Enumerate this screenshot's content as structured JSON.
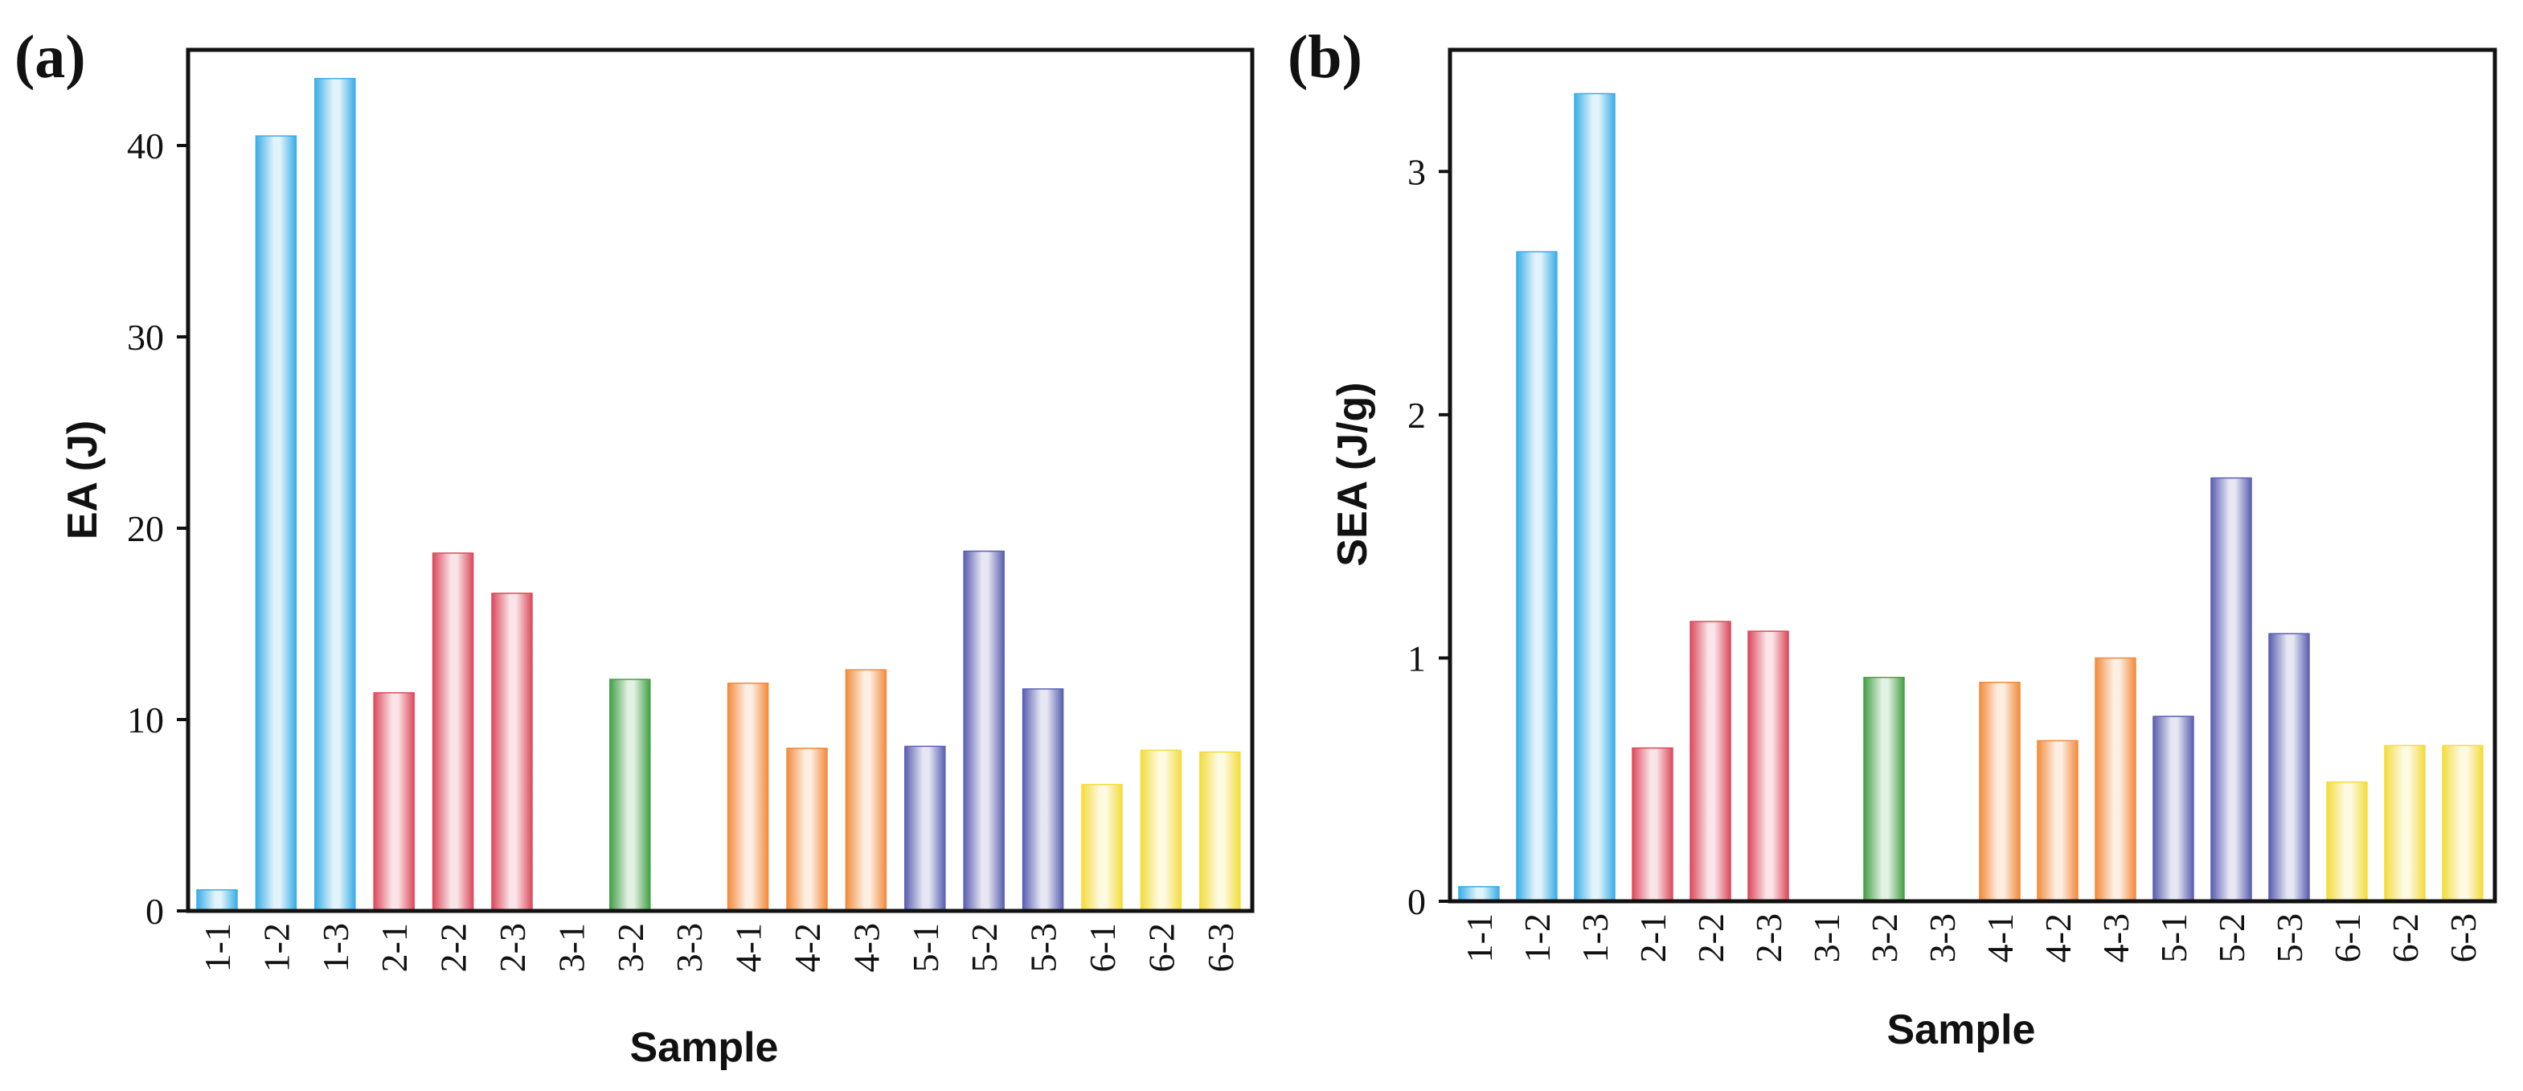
{
  "palette": {
    "1": "#3aaee6",
    "2": "#dc4a5c",
    "3": "#43a047",
    "4": "#f28b3c",
    "5": "#5a5fb0",
    "6": "#f3dc3c"
  },
  "chart_data": [
    {
      "type": "bar",
      "panel_label": "(a)",
      "title": "",
      "xlabel": "Sample",
      "ylabel": "EA (J)",
      "ylim": [
        0,
        45
      ],
      "yticks": [
        0,
        10,
        20,
        30,
        40
      ],
      "categories": [
        "1-1",
        "1-2",
        "1-3",
        "2-1",
        "2-2",
        "2-3",
        "3-1",
        "3-2",
        "3-3",
        "4-1",
        "4-2",
        "4-3",
        "5-1",
        "5-2",
        "5-3",
        "6-1",
        "6-2",
        "6-3"
      ],
      "groups": [
        "1",
        "1",
        "1",
        "2",
        "2",
        "2",
        "3",
        "3",
        "3",
        "4",
        "4",
        "4",
        "5",
        "5",
        "5",
        "6",
        "6",
        "6"
      ],
      "values": [
        1.1,
        40.5,
        43.5,
        11.4,
        18.7,
        16.6,
        0,
        12.1,
        0,
        11.9,
        8.5,
        12.6,
        8.6,
        18.8,
        11.6,
        6.6,
        8.4,
        8.3
      ]
    },
    {
      "type": "bar",
      "panel_label": "(b)",
      "title": "",
      "xlabel": "Sample",
      "ylabel": "SEA (J/g)",
      "ylim": [
        0,
        3.5
      ],
      "yticks": [
        0,
        1,
        2,
        3
      ],
      "categories": [
        "1-1",
        "1-2",
        "1-3",
        "2-1",
        "2-2",
        "2-3",
        "3-1",
        "3-2",
        "3-3",
        "4-1",
        "4-2",
        "4-3",
        "5-1",
        "5-2",
        "5-3",
        "6-1",
        "6-2",
        "6-3"
      ],
      "groups": [
        "1",
        "1",
        "1",
        "2",
        "2",
        "2",
        "3",
        "3",
        "3",
        "4",
        "4",
        "4",
        "5",
        "5",
        "5",
        "6",
        "6",
        "6"
      ],
      "values": [
        0.06,
        2.67,
        3.32,
        0.63,
        1.15,
        1.11,
        0,
        0.92,
        0,
        0.9,
        0.66,
        1.0,
        0.76,
        1.74,
        1.1,
        0.49,
        0.64,
        0.64
      ]
    }
  ]
}
